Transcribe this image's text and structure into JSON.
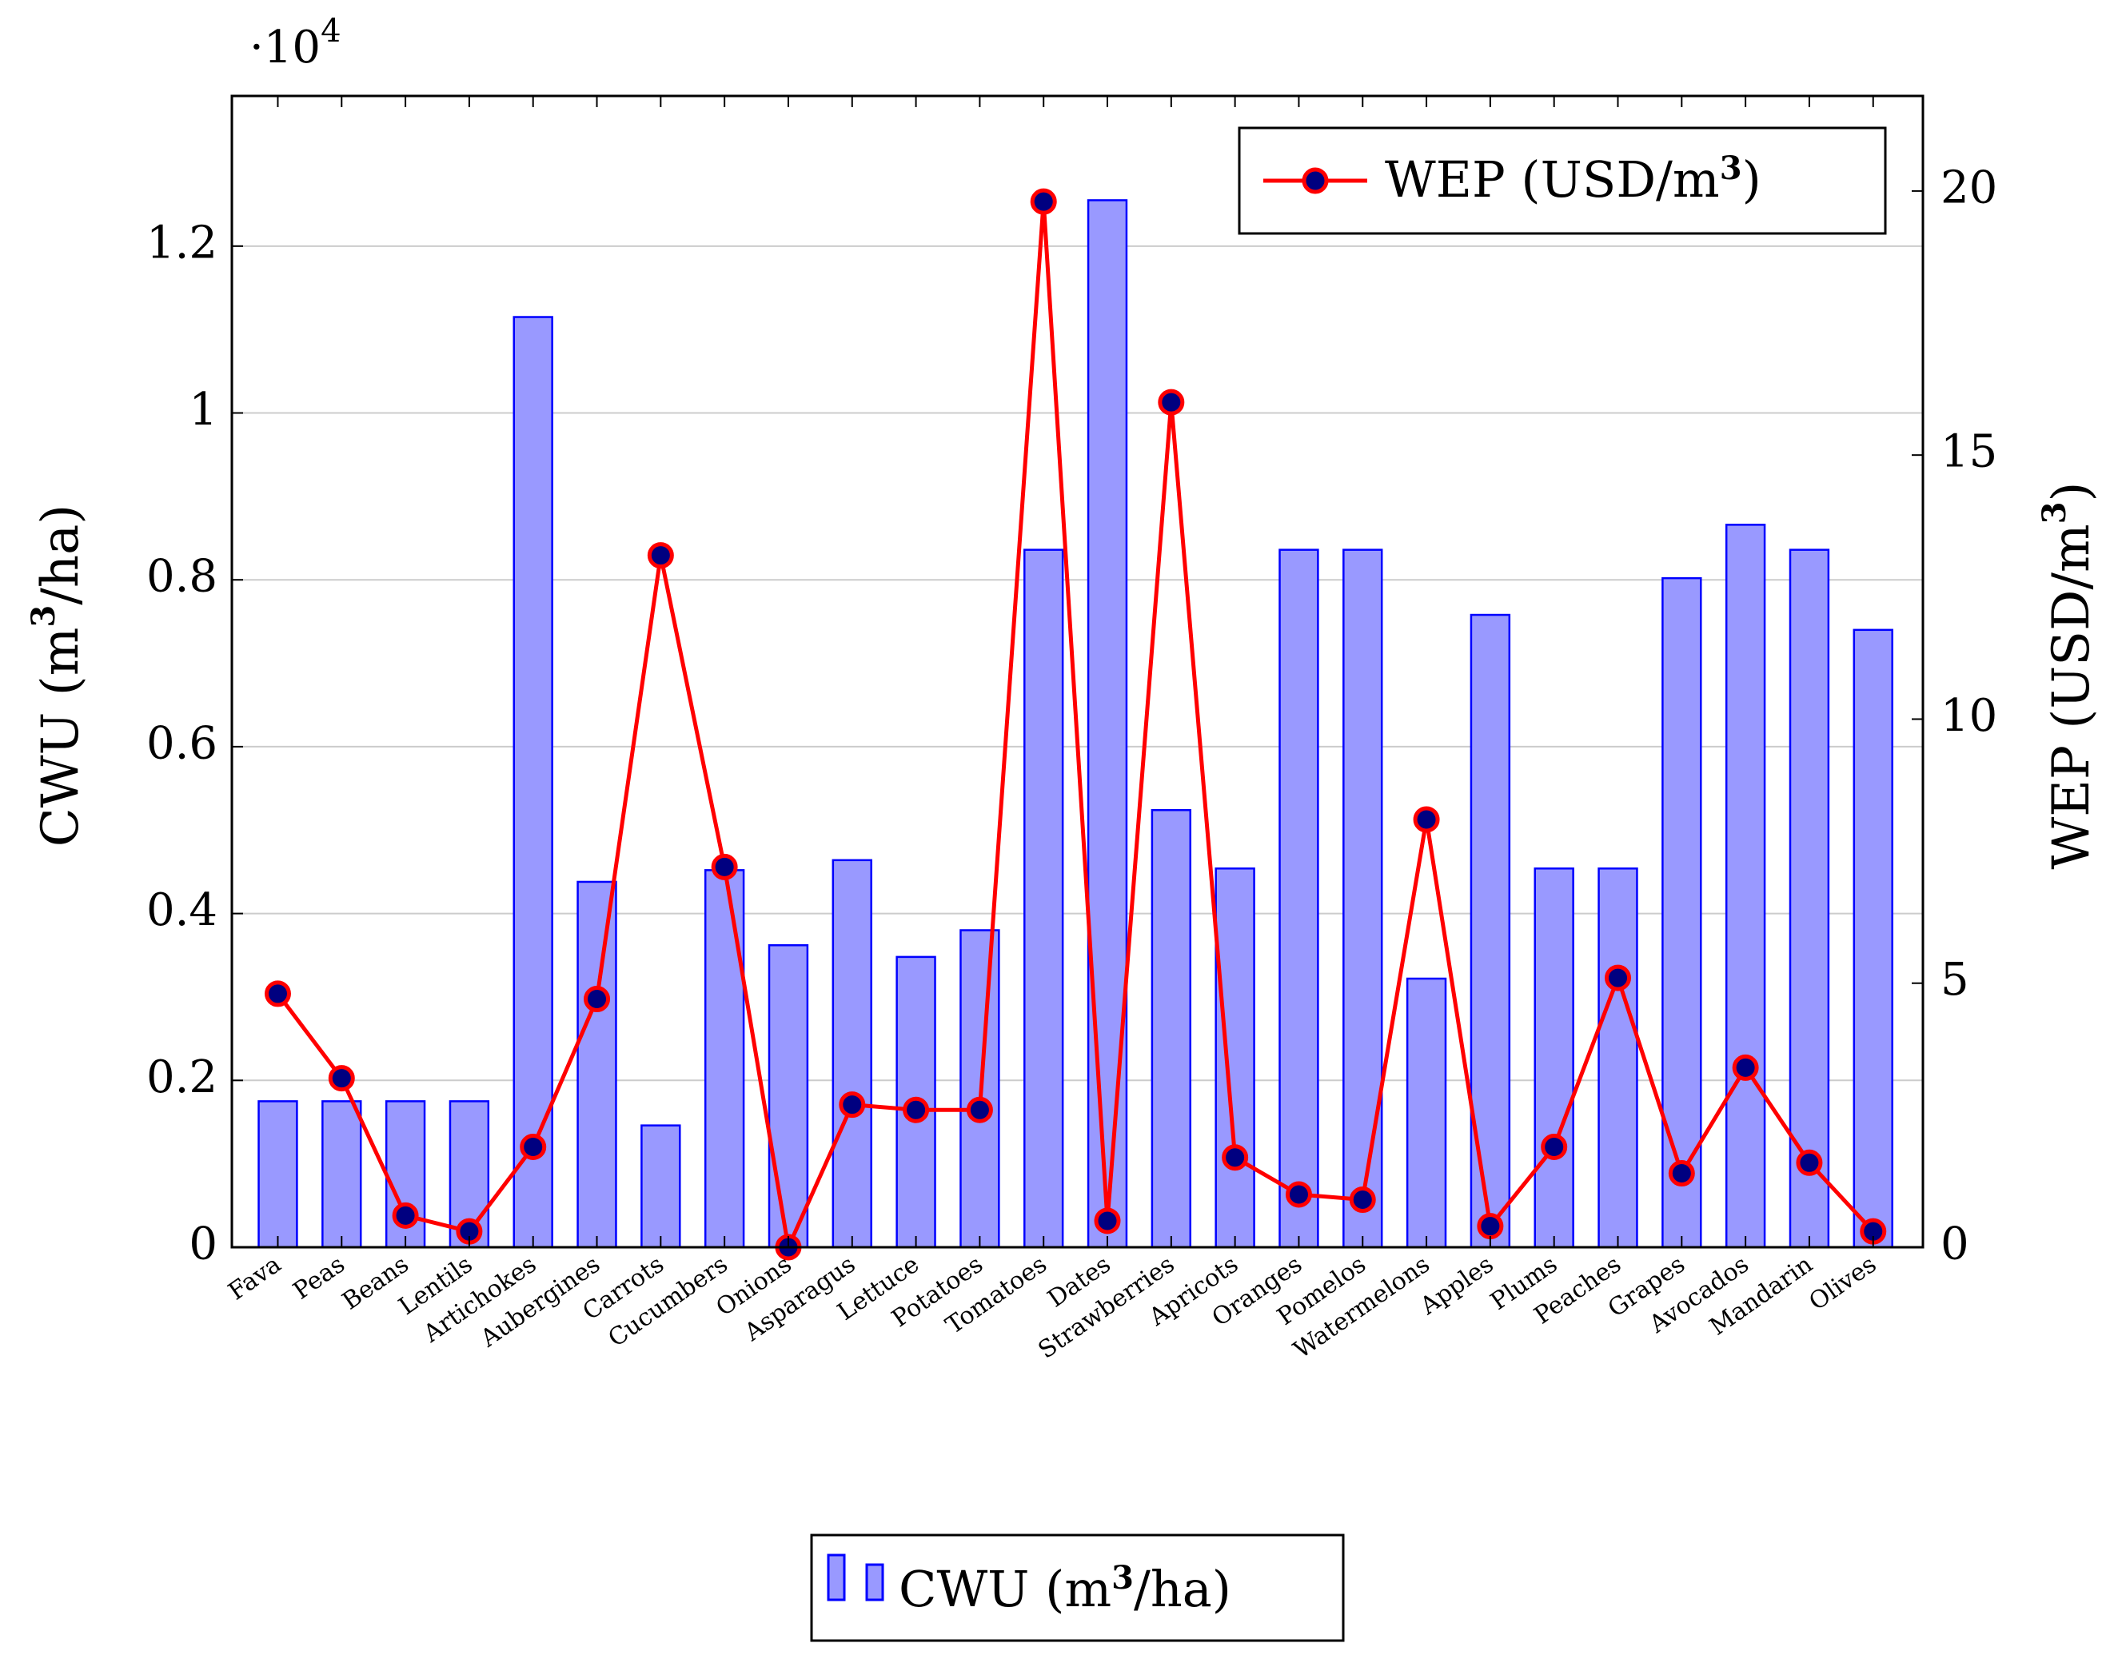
{
  "chart_data": {
    "type": "bar+line",
    "title": "",
    "categories": [
      "Fava",
      "Peas",
      "Beans",
      "Lentils",
      "Artichokes",
      "Aubergines",
      "Carrots",
      "Cucumbers",
      "Onions",
      "Asparagus",
      "Lettuce",
      "Potatoes",
      "Tomatoes",
      "Dates",
      "Strawberries",
      "Apricots",
      "Oranges",
      "Pomelos",
      "Watermelons",
      "Apples",
      "Plums",
      "Peaches",
      "Grapes",
      "Avocados",
      "Mandarin",
      "Olives"
    ],
    "series": [
      {
        "name": "CWU (m³/ha)",
        "type": "bar",
        "axis": "left",
        "color": "#9999ff",
        "edge_color": "#0000ff",
        "values": [
          1750,
          1750,
          1750,
          1750,
          11150,
          4380,
          1460,
          4520,
          3620,
          4640,
          3480,
          3800,
          8360,
          12550,
          5240,
          4540,
          8360,
          8360,
          3220,
          7580,
          4540,
          4540,
          8020,
          8660,
          8360,
          7400
        ]
      },
      {
        "name": "WEP (USD/m³)",
        "type": "line",
        "axis": "right",
        "line_color": "#ff0000",
        "marker_color": "#000080",
        "values": [
          4.8,
          3.2,
          0.6,
          0.3,
          1.9,
          4.7,
          13.1,
          7.2,
          0.0,
          2.7,
          2.6,
          2.6,
          19.8,
          0.5,
          16.0,
          1.7,
          1.0,
          0.9,
          8.1,
          0.4,
          1.9,
          5.1,
          1.4,
          3.4,
          1.6,
          0.3
        ]
      }
    ],
    "y_left": {
      "label_main": "CWU (m",
      "label_sup": "3",
      "label_tail": "/ha)",
      "lim": [
        0,
        13800
      ],
      "ticks": [
        0,
        2000,
        4000,
        6000,
        8000,
        10000,
        12000
      ],
      "tick_labels": [
        "0",
        "0.2",
        "0.4",
        "0.6",
        "0.8",
        "1",
        "1.2"
      ],
      "multiplier_prefix": "·10",
      "multiplier_exp": "4"
    },
    "y_right": {
      "label_main": "WEP (USD/m",
      "label_sup": "3",
      "label_tail": ")",
      "lim": [
        0,
        21.8
      ],
      "ticks": [
        0,
        5,
        10,
        15,
        20
      ],
      "tick_labels": [
        "0",
        "5",
        "10",
        "15",
        "20"
      ]
    },
    "grid": "horizontal",
    "legend_line": {
      "label_main": "WEP (USD/m",
      "label_sup": "3",
      "label_tail": ")",
      "placement": "top-right"
    },
    "legend_bar": {
      "label_main": "CWU (m",
      "label_sup": "3",
      "label_tail": "/ha)",
      "placement": "bottom-center"
    }
  }
}
